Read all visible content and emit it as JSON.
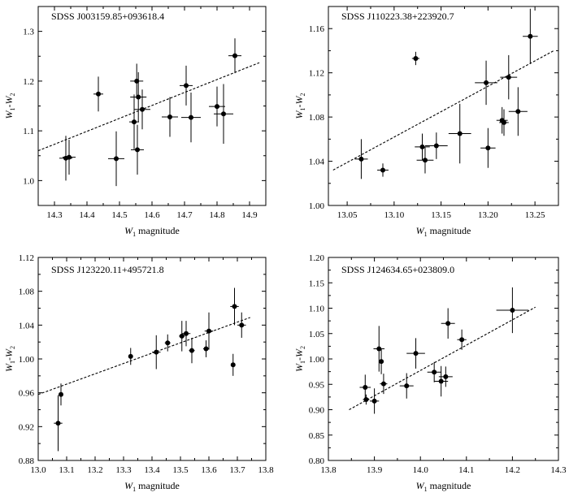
{
  "chart_data": [
    {
      "type": "scatter",
      "title": "SDSS J003159.85+093618.4",
      "xlabel": "W1 magnitude",
      "ylabel": "W1-W2",
      "xlabel_parts": {
        "sym": "W",
        "sub": "1",
        "rest": " magnitude"
      },
      "ylabel_parts": {
        "sym1": "W",
        "sub1": "1",
        "dash": "-",
        "sym2": "W",
        "sub2": "2"
      },
      "xlim": [
        14.25,
        14.95
      ],
      "ylim": [
        0.95,
        1.35
      ],
      "xticks": [
        14.3,
        14.4,
        14.5,
        14.6,
        14.7,
        14.8,
        14.9
      ],
      "xtick_labels": [
        "14.3",
        "14.4",
        "14.5",
        "14.6",
        "14.7",
        "14.8",
        "14.9"
      ],
      "yticks": [
        1.0,
        1.1,
        1.2,
        1.3
      ],
      "ytick_labels": [
        "1.0",
        "1.1",
        "1.2",
        "1.3"
      ],
      "fit_line": {
        "x": [
          14.25,
          14.93
        ],
        "y": [
          1.06,
          1.237
        ]
      },
      "points": [
        {
          "x": 14.335,
          "y": 1.045,
          "xerr": 0.02,
          "yerr": 0.045
        },
        {
          "x": 14.345,
          "y": 1.047,
          "xerr": 0.02,
          "yerr": 0.035
        },
        {
          "x": 14.435,
          "y": 1.174,
          "xerr": 0.015,
          "yerr": 0.035
        },
        {
          "x": 14.49,
          "y": 1.044,
          "xerr": 0.025,
          "yerr": 0.055
        },
        {
          "x": 14.545,
          "y": 1.118,
          "xerr": 0.015,
          "yerr": 0.055
        },
        {
          "x": 14.553,
          "y": 1.2,
          "xerr": 0.02,
          "yerr": 0.035
        },
        {
          "x": 14.555,
          "y": 1.062,
          "xerr": 0.02,
          "yerr": 0.05
        },
        {
          "x": 14.558,
          "y": 1.168,
          "xerr": 0.025,
          "yerr": 0.05
        },
        {
          "x": 14.57,
          "y": 1.143,
          "xerr": 0.025,
          "yerr": 0.04
        },
        {
          "x": 14.655,
          "y": 1.128,
          "xerr": 0.025,
          "yerr": 0.04
        },
        {
          "x": 14.705,
          "y": 1.191,
          "xerr": 0.02,
          "yerr": 0.04
        },
        {
          "x": 14.72,
          "y": 1.127,
          "xerr": 0.03,
          "yerr": 0.05
        },
        {
          "x": 14.8,
          "y": 1.149,
          "xerr": 0.025,
          "yerr": 0.04
        },
        {
          "x": 14.82,
          "y": 1.134,
          "xerr": 0.03,
          "yerr": 0.06
        },
        {
          "x": 14.855,
          "y": 1.251,
          "xerr": 0.02,
          "yerr": 0.035
        }
      ]
    },
    {
      "type": "scatter",
      "title": "SDSS J110223.38+223920.7",
      "xlabel": "W1 magnitude",
      "ylabel": "W1-W2",
      "xlabel_parts": {
        "sym": "W",
        "sub": "1",
        "rest": " magnitude"
      },
      "ylabel_parts": {
        "sym1": "W",
        "sub1": "1",
        "dash": "-",
        "sym2": "W",
        "sub2": "2"
      },
      "xlim": [
        13.03,
        13.275
      ],
      "ylim": [
        1.0,
        1.18
      ],
      "xticks": [
        13.05,
        13.1,
        13.15,
        13.2,
        13.25
      ],
      "xtick_labels": [
        "13.05",
        "13.10",
        "13.15",
        "13.20",
        "13.25"
      ],
      "yticks": [
        1.0,
        1.04,
        1.08,
        1.12,
        1.16
      ],
      "ytick_labels": [
        "1.00",
        "1.04",
        "1.08",
        "1.12",
        "1.16"
      ],
      "fit_line": {
        "x": [
          13.035,
          13.27
        ],
        "y": [
          1.032,
          1.14
        ]
      },
      "points": [
        {
          "x": 13.065,
          "y": 1.042,
          "xerr": 0.007,
          "yerr": 0.018
        },
        {
          "x": 13.088,
          "y": 1.032,
          "xerr": 0.006,
          "yerr": 0.006
        },
        {
          "x": 13.123,
          "y": 1.133,
          "xerr": 0.004,
          "yerr": 0.006
        },
        {
          "x": 13.13,
          "y": 1.053,
          "xerr": 0.008,
          "yerr": 0.012
        },
        {
          "x": 13.133,
          "y": 1.041,
          "xerr": 0.009,
          "yerr": 0.012
        },
        {
          "x": 13.145,
          "y": 1.054,
          "xerr": 0.012,
          "yerr": 0.012
        },
        {
          "x": 13.17,
          "y": 1.065,
          "xerr": 0.012,
          "yerr": 0.027
        },
        {
          "x": 13.198,
          "y": 1.111,
          "xerr": 0.012,
          "yerr": 0.02
        },
        {
          "x": 13.2,
          "y": 1.052,
          "xerr": 0.008,
          "yerr": 0.018
        },
        {
          "x": 13.215,
          "y": 1.077,
          "xerr": 0.006,
          "yerr": 0.012
        },
        {
          "x": 13.217,
          "y": 1.075,
          "xerr": 0.005,
          "yerr": 0.012
        },
        {
          "x": 13.222,
          "y": 1.116,
          "xerr": 0.009,
          "yerr": 0.02
        },
        {
          "x": 13.232,
          "y": 1.085,
          "xerr": 0.01,
          "yerr": 0.022
        },
        {
          "x": 13.245,
          "y": 1.153,
          "xerr": 0.008,
          "yerr": 0.025
        }
      ]
    },
    {
      "type": "scatter",
      "title": "SDSS J123220.11+495721.8",
      "xlabel": "W1 magnitude",
      "ylabel": "W1-W2",
      "xlabel_parts": {
        "sym": "W",
        "sub": "1",
        "rest": " magnitude"
      },
      "ylabel_parts": {
        "sym1": "W",
        "sub1": "1",
        "dash": "-",
        "sym2": "W",
        "sub2": "2"
      },
      "xlim": [
        13.0,
        13.8
      ],
      "ylim": [
        0.88,
        1.12
      ],
      "xticks": [
        13.0,
        13.1,
        13.2,
        13.3,
        13.4,
        13.5,
        13.6,
        13.7,
        13.8
      ],
      "xtick_labels": [
        "13.0",
        "13.1",
        "13.2",
        "13.3",
        "13.4",
        "13.5",
        "13.6",
        "13.7",
        "13.8"
      ],
      "yticks": [
        0.88,
        0.92,
        0.96,
        1.0,
        1.04,
        1.08,
        1.12
      ],
      "ytick_labels": [
        "0.88",
        "0.92",
        "0.96",
        "1.00",
        "1.04",
        "1.08",
        "1.12"
      ],
      "fit_line": {
        "x": [
          13.0,
          13.745
        ],
        "y": [
          0.958,
          1.049
        ]
      },
      "points": [
        {
          "x": 13.07,
          "y": 0.924,
          "xerr": 0.015,
          "yerr": 0.033
        },
        {
          "x": 13.08,
          "y": 0.958,
          "xerr": 0.005,
          "yerr": 0.013
        },
        {
          "x": 13.325,
          "y": 1.003,
          "xerr": 0.005,
          "yerr": 0.01
        },
        {
          "x": 13.415,
          "y": 1.008,
          "xerr": 0.015,
          "yerr": 0.02
        },
        {
          "x": 13.455,
          "y": 1.019,
          "xerr": 0.01,
          "yerr": 0.01
        },
        {
          "x": 13.505,
          "y": 1.027,
          "xerr": 0.01,
          "yerr": 0.018
        },
        {
          "x": 13.52,
          "y": 1.03,
          "xerr": 0.015,
          "yerr": 0.015
        },
        {
          "x": 13.54,
          "y": 1.01,
          "xerr": 0.01,
          "yerr": 0.015
        },
        {
          "x": 13.59,
          "y": 1.012,
          "xerr": 0.01,
          "yerr": 0.01
        },
        {
          "x": 13.6,
          "y": 1.033,
          "xerr": 0.015,
          "yerr": 0.022
        },
        {
          "x": 13.685,
          "y": 0.993,
          "xerr": 0.005,
          "yerr": 0.013
        },
        {
          "x": 13.69,
          "y": 1.062,
          "xerr": 0.015,
          "yerr": 0.022
        },
        {
          "x": 13.715,
          "y": 1.04,
          "xerr": 0.015,
          "yerr": 0.015
        }
      ]
    },
    {
      "type": "scatter",
      "title": "SDSS J124634.65+023809.0",
      "xlabel": "W1 magnitude",
      "ylabel": "W1-W2",
      "xlabel_parts": {
        "sym": "W",
        "sub": "1",
        "rest": " magnitude"
      },
      "ylabel_parts": {
        "sym1": "W",
        "sub1": "1",
        "dash": "-",
        "sym2": "W",
        "sub2": "2"
      },
      "xlim": [
        13.8,
        14.3
      ],
      "ylim": [
        0.8,
        1.2
      ],
      "xticks": [
        13.8,
        13.9,
        14.0,
        14.1,
        14.2,
        14.3
      ],
      "xtick_labels": [
        "13.8",
        "13.9",
        "14.0",
        "14.1",
        "14.2",
        "14.3"
      ],
      "yticks": [
        0.8,
        0.85,
        0.9,
        0.95,
        1.0,
        1.05,
        1.1,
        1.15,
        1.2
      ],
      "ytick_labels": [
        "0.80",
        "0.85",
        "0.90",
        "0.95",
        "1.00",
        "1.05",
        "1.10",
        "1.15",
        "1.20"
      ],
      "fit_line": {
        "x": [
          13.845,
          14.25
        ],
        "y": [
          0.9,
          1.102
        ]
      },
      "points": [
        {
          "x": 13.88,
          "y": 0.944,
          "xerr": 0.012,
          "yerr": 0.025
        },
        {
          "x": 13.882,
          "y": 0.92,
          "xerr": 0.007,
          "yerr": 0.01
        },
        {
          "x": 13.9,
          "y": 0.917,
          "xerr": 0.01,
          "yerr": 0.025
        },
        {
          "x": 13.91,
          "y": 1.02,
          "xerr": 0.012,
          "yerr": 0.045
        },
        {
          "x": 13.915,
          "y": 0.995,
          "xerr": 0.005,
          "yerr": 0.025
        },
        {
          "x": 13.92,
          "y": 0.951,
          "xerr": 0.008,
          "yerr": 0.02
        },
        {
          "x": 13.97,
          "y": 0.947,
          "xerr": 0.015,
          "yerr": 0.025
        },
        {
          "x": 13.99,
          "y": 1.011,
          "xerr": 0.02,
          "yerr": 0.03
        },
        {
          "x": 14.03,
          "y": 0.974,
          "xerr": 0.015,
          "yerr": 0.02
        },
        {
          "x": 14.045,
          "y": 0.956,
          "xerr": 0.015,
          "yerr": 0.03
        },
        {
          "x": 14.055,
          "y": 0.965,
          "xerr": 0.015,
          "yerr": 0.02
        },
        {
          "x": 14.06,
          "y": 1.07,
          "xerr": 0.015,
          "yerr": 0.03
        },
        {
          "x": 14.09,
          "y": 1.038,
          "xerr": 0.01,
          "yerr": 0.02
        },
        {
          "x": 14.2,
          "y": 1.096,
          "xerr": 0.035,
          "yerr": 0.045
        }
      ]
    }
  ]
}
